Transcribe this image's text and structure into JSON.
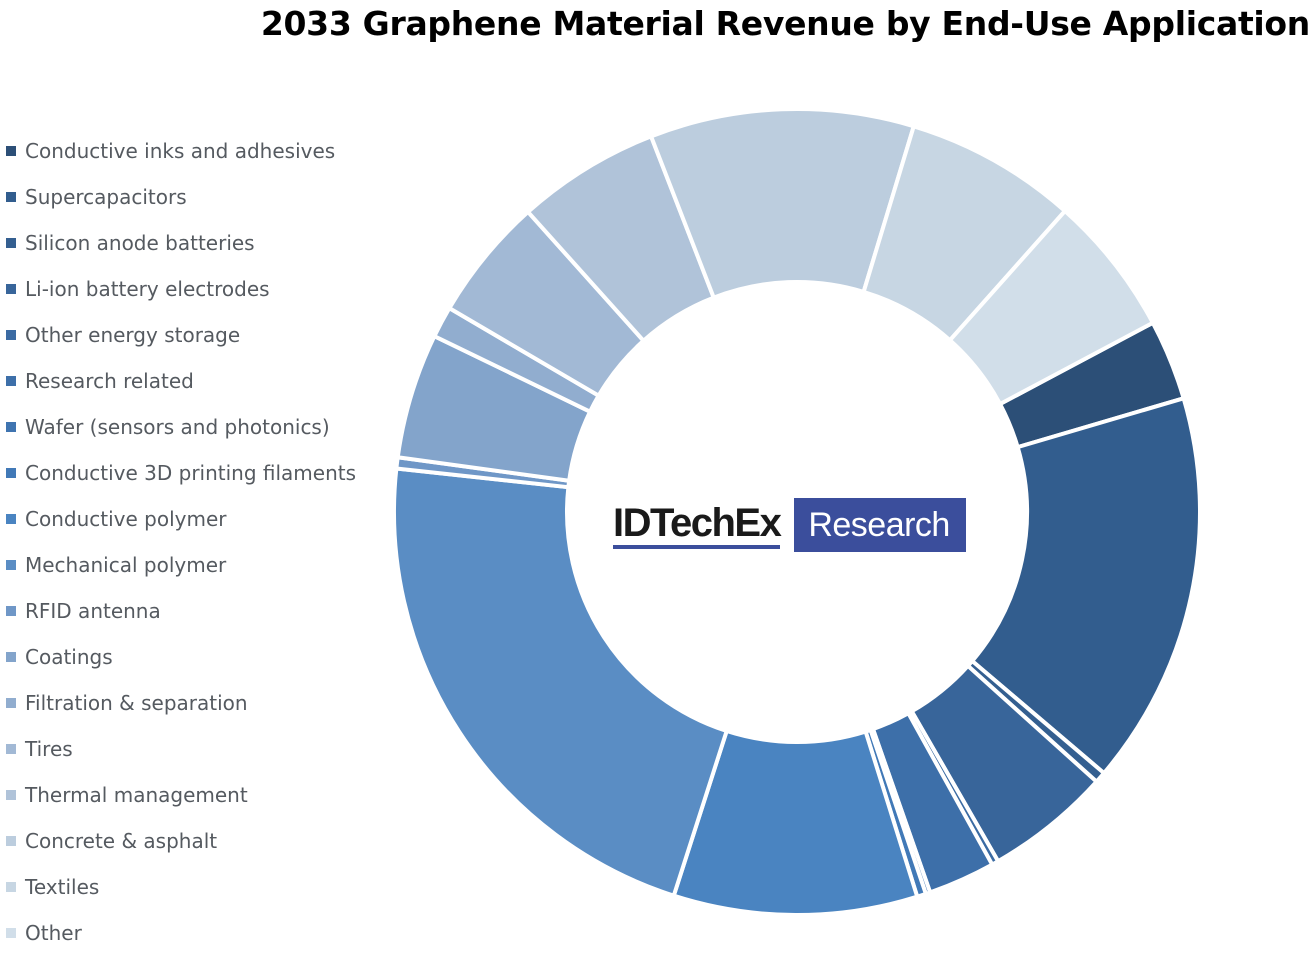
{
  "chart_data": {
    "type": "pie",
    "subtype": "donut",
    "title": "2033 Graphene Material Revenue by End-Use Application",
    "legend_position": "left",
    "start_angle_deg": 62,
    "categories": [
      "Conductive inks and adhesives",
      "Supercapacitors",
      "Silicon anode batteries",
      "Li-ion battery electrodes",
      "Other energy storage",
      "Research related",
      "Wafer (sensors and photonics)",
      "Conductive 3D printing filaments",
      "Conductive polymer",
      "Mechanical polymer",
      "RFID antenna",
      "Coatings",
      "Filtration & separation",
      "Tires",
      "Thermal management",
      "Concrete & asphalt",
      "Textiles",
      "Other"
    ],
    "values": [
      3.6,
      17.6,
      0.5,
      5.6,
      0.3,
      3.0,
      0.2,
      0.4,
      10.9,
      24.3,
      0.5,
      5.6,
      1.4,
      5.5,
      6.4,
      11.8,
      7.7,
      6.3
    ],
    "colors": [
      "#2c4f77",
      "#325d8e",
      "#345f90",
      "#38659a",
      "#3b6ba3",
      "#3d6fa9",
      "#3f74b0",
      "#4179b7",
      "#4a84c1",
      "#5a8dc4",
      "#6f97c7",
      "#83a4cb",
      "#91adcf",
      "#a2b9d5",
      "#b0c3d9",
      "#bccdde",
      "#c7d6e3",
      "#d1dee9"
    ]
  },
  "logo": {
    "brand": "IDTechEx",
    "tag": "Research"
  }
}
